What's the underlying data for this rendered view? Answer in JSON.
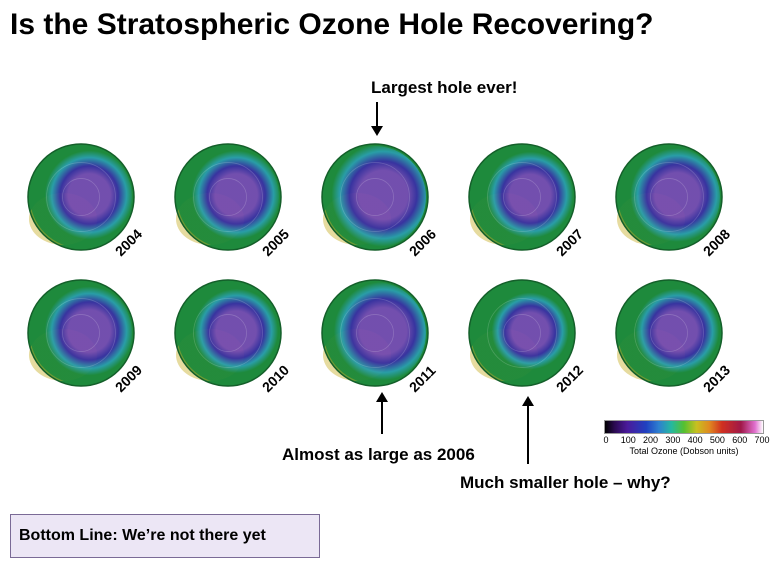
{
  "title": "Is the Stratospheric Ozone Hole Recovering?",
  "annotations": {
    "top": "Largest hole ever!",
    "middle": "Almost as large as 2006",
    "right": "Much smaller hole – why?"
  },
  "globes": [
    {
      "year": "2004",
      "hole": 0.74
    },
    {
      "year": "2005",
      "hole": 0.74
    },
    {
      "year": "2006",
      "hole": 0.86
    },
    {
      "year": "2007",
      "hole": 0.72
    },
    {
      "year": "2008",
      "hole": 0.78
    },
    {
      "year": "2009",
      "hole": 0.74
    },
    {
      "year": "2010",
      "hole": 0.7
    },
    {
      "year": "2011",
      "hole": 0.82
    },
    {
      "year": "2012",
      "hole": 0.64
    },
    {
      "year": "2013",
      "hole": 0.7
    }
  ],
  "legend": {
    "ticks": [
      "0",
      "100",
      "200",
      "300",
      "400",
      "500",
      "600",
      "700"
    ],
    "title": "Total Ozone (Dobson units)"
  },
  "bottom_line": "Bottom Line:  We’re not there yet",
  "colors": {
    "ring": "#1e8a3c",
    "mid": "#2a9fb0",
    "hole": "#3a2ca8",
    "core": "#7a4ab8",
    "yellow": "#c8b02a"
  }
}
